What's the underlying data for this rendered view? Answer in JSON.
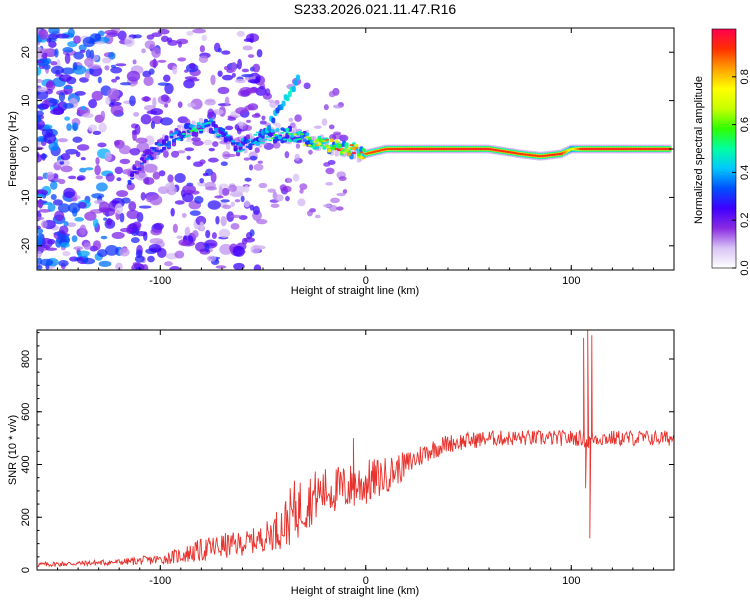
{
  "title": "S233.2026.021.11.47.R16",
  "chart_data": [
    {
      "type": "heatmap",
      "xlabel": "Height of straight line (km)",
      "ylabel": "Frequency (Hz)",
      "xlim": [
        -160,
        150
      ],
      "ylim": [
        -25,
        25
      ],
      "xticks": [
        -100,
        0,
        100
      ],
      "yticks": [
        -20,
        -10,
        0,
        10,
        20
      ],
      "colorbar": {
        "label": "Normalized spectral amplitude",
        "range": [
          0,
          1
        ],
        "ticks": [
          0.0,
          0.2,
          0.4,
          0.6,
          0.8
        ],
        "colors": [
          "#ffffff",
          "#d9c4f5",
          "#8a2be2",
          "#3f00ff",
          "#0050ff",
          "#00c8ff",
          "#00ffa0",
          "#30ff00",
          "#c8ff00",
          "#ffff00",
          "#ffa000",
          "#ff3000",
          "#ff0050"
        ]
      },
      "ridge": {
        "x": [
          -115,
          -105,
          -95,
          -85,
          -75,
          -62,
          -55,
          -45,
          -35,
          -30,
          -20,
          -10,
          0,
          10,
          20,
          40,
          60,
          75,
          85,
          95,
          100,
          105,
          120,
          135,
          148
        ],
        "frequency": [
          -6,
          -1,
          2,
          4,
          5,
          0,
          2,
          3,
          3,
          2,
          1,
          0,
          -1,
          0,
          0,
          0,
          0,
          -1,
          -1.5,
          -1,
          0,
          0,
          0,
          0,
          0
        ],
        "amplitude": [
          0.3,
          0.35,
          0.4,
          0.5,
          0.45,
          0.4,
          0.45,
          0.5,
          0.55,
          0.6,
          0.75,
          0.85,
          0.9,
          0.92,
          0.95,
          0.95,
          0.95,
          0.93,
          0.92,
          0.95,
          0.7,
          0.95,
          0.95,
          0.95,
          0.95
        ]
      }
    },
    {
      "type": "line",
      "xlabel": "Height of straight line (km)",
      "ylabel": "SNR (10 * v/v)",
      "xlim": [
        -160,
        150
      ],
      "ylim": [
        0,
        910
      ],
      "xticks": [
        -100,
        0,
        100
      ],
      "yticks": [
        0,
        200,
        400,
        600,
        800
      ],
      "color": "#e8322d",
      "envelope": {
        "x": [
          -160,
          -140,
          -120,
          -100,
          -90,
          -80,
          -70,
          -60,
          -50,
          -40,
          -35,
          -30,
          -25,
          -20,
          -10,
          0,
          10,
          20,
          30,
          40,
          60,
          80,
          100,
          106,
          108,
          110,
          112,
          120,
          140,
          150
        ],
        "y": [
          20,
          25,
          30,
          40,
          55,
          75,
          90,
          100,
          120,
          170,
          220,
          250,
          280,
          300,
          310,
          330,
          360,
          400,
          450,
          480,
          500,
          500,
          500,
          500,
          480,
          500,
          500,
          500,
          500,
          500
        ],
        "noise": [
          10,
          10,
          12,
          20,
          30,
          45,
          50,
          45,
          50,
          90,
          120,
          110,
          100,
          90,
          90,
          90,
          70,
          50,
          40,
          35,
          30,
          30,
          30,
          30,
          30,
          30,
          30,
          30,
          30,
          30
        ]
      },
      "spikes": [
        {
          "x": -6,
          "y": 500
        },
        {
          "x": 106,
          "y": 880
        },
        {
          "x": 108,
          "y": 910
        },
        {
          "x": 109,
          "y": 120
        },
        {
          "x": 110,
          "y": 890
        },
        {
          "x": 107,
          "y": 310
        }
      ]
    }
  ]
}
